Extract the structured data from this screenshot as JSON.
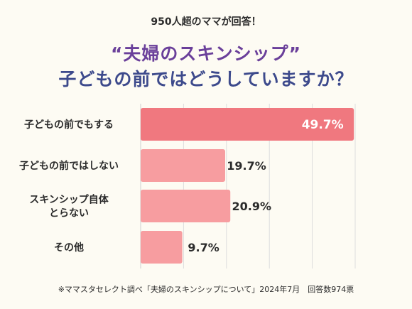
{
  "header": {
    "subtitle": "950人超のママが回答！",
    "title_line1": "“夫婦のスキンシップ”",
    "title_line2": "子どもの前ではどうしていますか？"
  },
  "chart_data": {
    "type": "bar",
    "orientation": "horizontal",
    "categories": [
      [
        "子どもの前でもする"
      ],
      [
        "子どもの前ではしない"
      ],
      [
        "スキンシップ自体",
        "とらない"
      ],
      [
        "その他"
      ]
    ],
    "values": [
      49.7,
      19.7,
      20.9,
      9.7
    ],
    "value_labels": [
      "49.7%",
      "19.7%",
      "20.9%",
      "9.7%"
    ],
    "xlim": [
      0,
      50
    ],
    "grid": true,
    "highlight_index": 0,
    "colors": {
      "highlight": "#f0787f",
      "bar": "#f79da0",
      "grid": "#dddddd",
      "label_on_bar": "#ffffff",
      "label_off_bar": "#2b2b2b"
    }
  },
  "footer": {
    "source": "※ママスタセレクト調べ「夫婦のスキンシップについて」2024年7月　回答数974票"
  }
}
